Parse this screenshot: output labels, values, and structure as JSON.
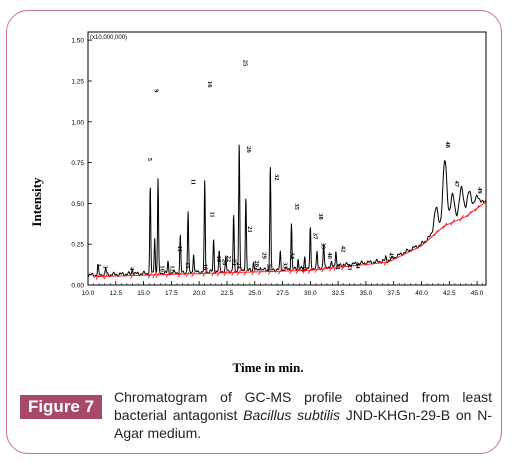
{
  "chart_data": {
    "type": "line",
    "title": "",
    "xlabel": "Time in min.",
    "ylabel": "Intensity",
    "scale_note": "(x10,000,000)",
    "xlim": [
      10.0,
      45.8
    ],
    "ylim": [
      0.0,
      1.55
    ],
    "x_ticks": [
      "10.0",
      "12.5",
      "15.0",
      "17.5",
      "20.0",
      "22.5",
      "25.0",
      "27.5",
      "30.0",
      "32.5",
      "35.0",
      "37.5",
      "40.0",
      "42.5",
      "45.0"
    ],
    "y_ticks": [
      "0.00",
      "0.25",
      "0.50",
      "0.75",
      "1.00",
      "1.25",
      "1.50"
    ],
    "series": [
      {
        "color": "#000000",
        "baseline": [
          [
            10.0,
            0.06
          ],
          [
            20,
            0.08
          ],
          [
            30,
            0.1
          ],
          [
            37,
            0.15
          ],
          [
            40,
            0.25
          ],
          [
            42,
            0.37
          ],
          [
            44,
            0.43
          ],
          [
            45.8,
            0.52
          ]
        ],
        "peaks": [
          {
            "x": 10.9,
            "y": 0.12
          },
          {
            "x": 11.6,
            "y": 0.1
          },
          {
            "x": 14.0,
            "y": 0.1
          },
          {
            "x": 15.6,
            "y": 0.6
          },
          {
            "x": 16.0,
            "y": 0.3
          },
          {
            "x": 16.3,
            "y": 0.65
          },
          {
            "x": 17.2,
            "y": 0.14
          },
          {
            "x": 18.3,
            "y": 0.3
          },
          {
            "x": 19.0,
            "y": 0.45
          },
          {
            "x": 19.5,
            "y": 0.2
          },
          {
            "x": 20.5,
            "y": 0.63
          },
          {
            "x": 21.3,
            "y": 0.28
          },
          {
            "x": 21.8,
            "y": 0.2
          },
          {
            "x": 22.4,
            "y": 0.17
          },
          {
            "x": 23.1,
            "y": 0.43
          },
          {
            "x": 23.6,
            "y": 0.89
          },
          {
            "x": 24.2,
            "y": 0.55
          },
          {
            "x": 24.9,
            "y": 0.15
          },
          {
            "x": 25.5,
            "y": 0.12
          },
          {
            "x": 26.4,
            "y": 0.73
          },
          {
            "x": 27.3,
            "y": 0.2
          },
          {
            "x": 28.3,
            "y": 0.38
          },
          {
            "x": 28.9,
            "y": 0.16
          },
          {
            "x": 29.5,
            "y": 0.18
          },
          {
            "x": 30.0,
            "y": 0.35
          },
          {
            "x": 30.6,
            "y": 0.2
          },
          {
            "x": 31.2,
            "y": 0.25
          },
          {
            "x": 31.9,
            "y": 0.13
          },
          {
            "x": 32.3,
            "y": 0.22
          },
          {
            "x": 33.0,
            "y": 0.13
          },
          {
            "x": 36.8,
            "y": 0.17
          },
          {
            "x": 41.3,
            "y": 0.47
          },
          {
            "x": 42.1,
            "y": 0.76
          },
          {
            "x": 42.8,
            "y": 0.55
          },
          {
            "x": 43.6,
            "y": 0.6
          },
          {
            "x": 44.3,
            "y": 0.58
          },
          {
            "x": 45.0,
            "y": 0.55
          }
        ]
      }
    ],
    "integration_baseline_color": "#ff2020",
    "peak_labels": [
      {
        "x": 10.8,
        "y": 0.13,
        "text": "1"
      },
      {
        "x": 11.4,
        "y": 0.12,
        "text": "3"
      },
      {
        "x": 13.8,
        "y": 0.11,
        "text": "4"
      },
      {
        "x": 15.4,
        "y": 0.78,
        "text": "5"
      },
      {
        "x": 16.0,
        "y": 1.2,
        "text": "9"
      },
      {
        "x": 16.5,
        "y": 0.12,
        "text": "10"
      },
      {
        "x": 17.4,
        "y": 0.12,
        "text": "12"
      },
      {
        "x": 18.1,
        "y": 0.24,
        "text": "11"
      },
      {
        "x": 18.8,
        "y": 0.14,
        "text": "15"
      },
      {
        "x": 19.3,
        "y": 0.65,
        "text": "11"
      },
      {
        "x": 20.4,
        "y": 0.13,
        "text": "18"
      },
      {
        "x": 20.8,
        "y": 1.25,
        "text": "16"
      },
      {
        "x": 21.0,
        "y": 0.45,
        "text": "11"
      },
      {
        "x": 21.6,
        "y": 0.18,
        "text": "19"
      },
      {
        "x": 22.1,
        "y": 0.16,
        "text": "20"
      },
      {
        "x": 22.5,
        "y": 0.18,
        "text": "22"
      },
      {
        "x": 23.0,
        "y": 0.16,
        "text": "23"
      },
      {
        "x": 23.4,
        "y": 0.14,
        "text": "24"
      },
      {
        "x": 24.0,
        "y": 1.38,
        "text": "25"
      },
      {
        "x": 24.3,
        "y": 0.85,
        "text": "26"
      },
      {
        "x": 24.4,
        "y": 0.36,
        "text": "21"
      },
      {
        "x": 25.0,
        "y": 0.15,
        "text": "28"
      },
      {
        "x": 25.7,
        "y": 0.2,
        "text": "29"
      },
      {
        "x": 26.1,
        "y": 0.13,
        "text": "30"
      },
      {
        "x": 26.8,
        "y": 0.68,
        "text": "32"
      },
      {
        "x": 27.6,
        "y": 0.14,
        "text": "33"
      },
      {
        "x": 28.2,
        "y": 0.2,
        "text": "34"
      },
      {
        "x": 28.6,
        "y": 0.5,
        "text": "35"
      },
      {
        "x": 29.2,
        "y": 0.12,
        "text": "36"
      },
      {
        "x": 30.3,
        "y": 0.32,
        "text": "37"
      },
      {
        "x": 30.8,
        "y": 0.44,
        "text": "38"
      },
      {
        "x": 31.0,
        "y": 0.26,
        "text": "39"
      },
      {
        "x": 31.6,
        "y": 0.2,
        "text": "40"
      },
      {
        "x": 32.3,
        "y": 0.13,
        "text": "41"
      },
      {
        "x": 32.8,
        "y": 0.24,
        "text": "42"
      },
      {
        "x": 33.4,
        "y": 0.13,
        "text": "43"
      },
      {
        "x": 34.1,
        "y": 0.14,
        "text": "44"
      },
      {
        "x": 37.1,
        "y": 0.2,
        "text": "45"
      },
      {
        "x": 42.2,
        "y": 0.88,
        "text": "48"
      },
      {
        "x": 43.0,
        "y": 0.64,
        "text": "47"
      },
      {
        "x": 45.1,
        "y": 0.6,
        "text": "49"
      }
    ]
  },
  "figure": {
    "badge": "Figure 7",
    "caption_before": "Chromatogram of GC-MS profile obtained from least bacterial antagonist ",
    "caption_italic": "Bacillus subtilis",
    "caption_after": " JND-KHGn-29-B on N-Agar medium."
  }
}
